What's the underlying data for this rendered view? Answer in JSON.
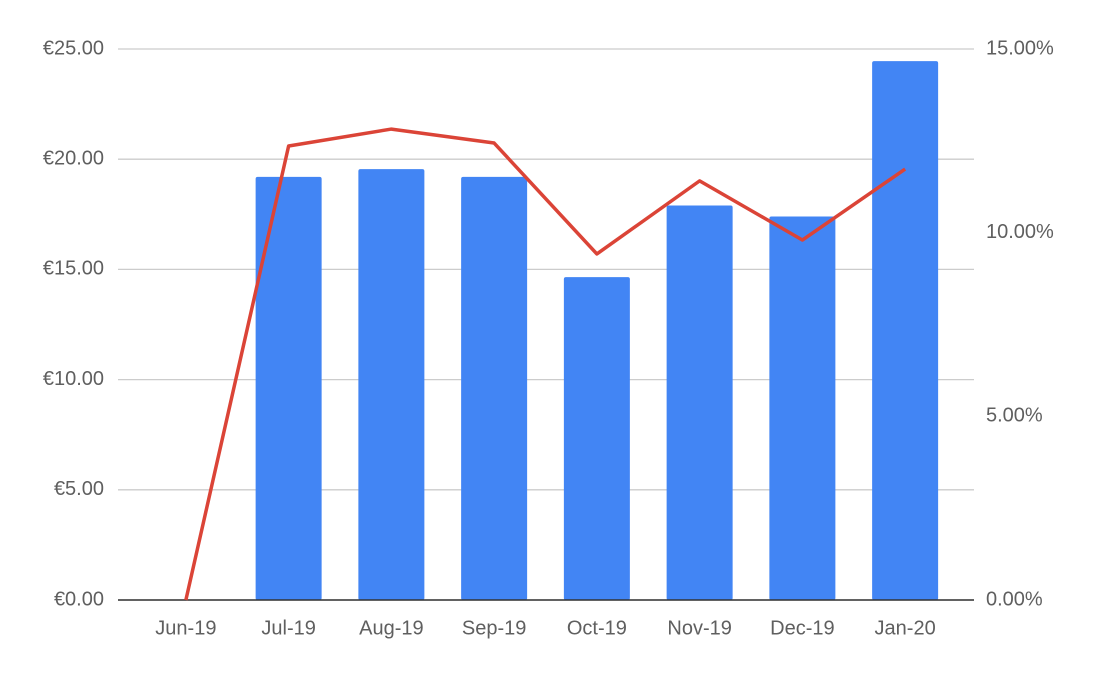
{
  "chart_data": {
    "type": "combo",
    "categories": [
      "Jun-19",
      "Jul-19",
      "Aug-19",
      "Sep-19",
      "Oct-19",
      "Nov-19",
      "Dec-19",
      "Jan-20"
    ],
    "series": [
      {
        "type": "bar",
        "color": "#4285f4",
        "values": [
          0,
          19.2,
          19.55,
          19.2,
          14.65,
          17.9,
          17.4,
          24.45
        ]
      },
      {
        "type": "line",
        "axis": "y2",
        "color": "#db4437",
        "values": [
          0,
          12.36,
          12.82,
          12.44,
          9.42,
          11.41,
          9.8,
          11.73
        ]
      }
    ],
    "ylim": [
      0,
      25
    ],
    "yticks": [
      {
        "value": 0,
        "label": "€0.00"
      },
      {
        "value": 5,
        "label": "€5.00"
      },
      {
        "value": 10,
        "label": "€10.00"
      },
      {
        "value": 15,
        "label": "€15.00"
      },
      {
        "value": 20,
        "label": "€20.00"
      },
      {
        "value": 25,
        "label": "€25.00"
      }
    ],
    "y2lim": [
      0,
      15
    ],
    "y2ticks": [
      {
        "value": 0,
        "label": "0.00%"
      },
      {
        "value": 5,
        "label": "5.00%"
      },
      {
        "value": 10,
        "label": "10.00%"
      },
      {
        "value": 15,
        "label": "15.00%"
      }
    ],
    "grid": true
  }
}
